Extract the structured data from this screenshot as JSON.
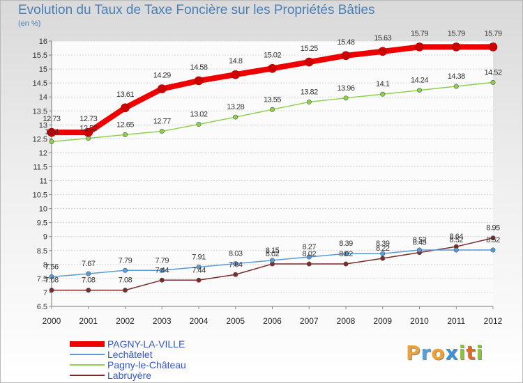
{
  "header": {
    "title": "Evolution du Taux de Taxe Foncière sur les Propriétés Bâties",
    "unit": "(en %)"
  },
  "brand": {
    "letters": [
      "P",
      "r",
      "o",
      "x",
      "i",
      "t",
      "i"
    ],
    "colors": [
      "#e8a33a",
      "#5aa0d8",
      "#f0a030",
      "#3d8fd6",
      "#8cc43c",
      "#e06a2a",
      "#8cc43c"
    ]
  },
  "chart_data": {
    "type": "line",
    "x": [
      "2000",
      "2001",
      "2002",
      "2003",
      "2004",
      "2005",
      "2006",
      "2007",
      "2008",
      "2009",
      "2010",
      "2011",
      "2012"
    ],
    "ylim": [
      6.5,
      16
    ],
    "yticks": [
      "6.5",
      "7",
      "7.5",
      "8",
      "8.5",
      "9",
      "9.5",
      "10",
      "10.5",
      "11",
      "11.5",
      "12",
      "12.5",
      "13",
      "13.5",
      "14",
      "14.5",
      "15",
      "15.5",
      "16"
    ],
    "grid": "horizontal",
    "legend_position": "bottom-left",
    "series": [
      {
        "name": "PAGNY-LA-VILLE",
        "color": "#ee0000",
        "values": [
          12.73,
          12.73,
          13.61,
          14.29,
          14.58,
          14.8,
          15.02,
          15.25,
          15.48,
          15.63,
          15.79,
          15.79,
          15.79
        ],
        "labels": [
          "12.73",
          "12.73",
          "13.61",
          "14.29",
          "14.58",
          "14.8",
          "15.02",
          "15.25",
          "15.48",
          "15.63",
          "15.79",
          "15.79",
          "15.79"
        ]
      },
      {
        "name": "Lechâtelet",
        "color": "#5b9bd5",
        "values": [
          7.56,
          7.67,
          7.79,
          7.79,
          7.91,
          8.03,
          8.15,
          8.27,
          8.39,
          8.39,
          8.52,
          8.52,
          8.52
        ],
        "labels": [
          "7.56",
          "7.67",
          "7.79",
          "7.79",
          "7.91",
          "8.03",
          "8.15",
          "8.27",
          "8.39",
          "8.39",
          "8.52",
          "8.52",
          "8.52"
        ]
      },
      {
        "name": "Pagny-le-Château",
        "color": "#8fd14f",
        "values": [
          12.4,
          12.52,
          12.65,
          12.77,
          13.02,
          13.28,
          13.55,
          13.82,
          13.96,
          14.1,
          14.24,
          14.38,
          14.52
        ],
        "labels": [
          "12.4",
          "12.52",
          "12.65",
          "12.77",
          "13.02",
          "13.28",
          "13.55",
          "13.82",
          "13.96",
          "14.1",
          "14.24",
          "14.38",
          "14.52"
        ]
      },
      {
        "name": "Labruyère",
        "color": "#7b2a2a",
        "values": [
          7.08,
          7.08,
          7.08,
          7.44,
          7.44,
          7.64,
          8.02,
          8.02,
          8.02,
          8.22,
          8.43,
          8.64,
          8.95
        ],
        "labels": [
          "7.08",
          "7.08",
          "7.08",
          "7.44",
          "7.44",
          "7.64",
          "8.02",
          "8.02",
          "8.02",
          "8.22",
          "8.43",
          "8.64",
          "8.95"
        ]
      }
    ]
  }
}
